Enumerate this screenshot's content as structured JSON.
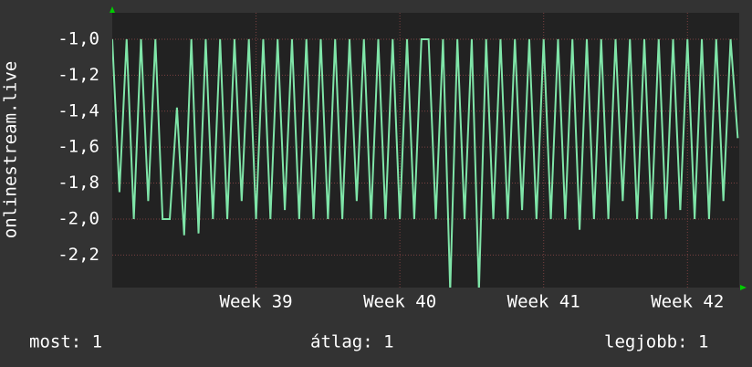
{
  "chart_data": {
    "type": "line",
    "ylabel": "onlinestream.live",
    "x": [
      38.0,
      38.05,
      38.1,
      38.15,
      38.2,
      38.25,
      38.3,
      38.35,
      38.4,
      38.45,
      38.5,
      38.55,
      38.6,
      38.65,
      38.7,
      38.75,
      38.8,
      38.85,
      38.9,
      38.95,
      39.0,
      39.05,
      39.1,
      39.15,
      39.2,
      39.25,
      39.3,
      39.35,
      39.4,
      39.45,
      39.5,
      39.55,
      39.6,
      39.65,
      39.7,
      39.75,
      39.8,
      39.85,
      39.9,
      39.95,
      40.0,
      40.05,
      40.1,
      40.15,
      40.2,
      40.25,
      40.3,
      40.35,
      40.4,
      40.45,
      40.5,
      40.55,
      40.6,
      40.65,
      40.7,
      40.75,
      40.8,
      40.85,
      40.9,
      40.95,
      41.0,
      41.05,
      41.1,
      41.15,
      41.2,
      41.25,
      41.3,
      41.35,
      41.4,
      41.45,
      41.5,
      41.55,
      41.6,
      41.65,
      41.7,
      41.75,
      41.8,
      41.85,
      41.9,
      41.95,
      42.0,
      42.05,
      42.1,
      42.15,
      42.2,
      42.25,
      42.3,
      42.35
    ],
    "series": [
      {
        "name": "onlinestream.live",
        "color": "#7fe5a8",
        "values": [
          -1,
          -1.85,
          -1,
          -2,
          -1,
          -1.9,
          -1,
          -2,
          -2,
          -1.38,
          -2.09,
          -1,
          -2.08,
          -1,
          -2,
          -1,
          -2,
          -1,
          -1.9,
          -1,
          -2,
          -1,
          -2,
          -1,
          -1.95,
          -1,
          -2,
          -1,
          -2,
          -1,
          -2,
          -1,
          -2,
          -1,
          -1.9,
          -1,
          -2,
          -1,
          -2,
          -1,
          -2,
          -1,
          -2,
          -1,
          -1,
          -2,
          -1,
          -2.4,
          -1,
          -2,
          -1,
          -2.4,
          -1,
          -2,
          -1,
          -2,
          -1,
          -1.95,
          -1,
          -2,
          -1,
          -2,
          -1,
          -2,
          -1,
          -2.06,
          -1,
          -2,
          -1,
          -2,
          -1,
          -1.9,
          -1,
          -2,
          -1,
          -2,
          -1,
          -2,
          -1,
          -1.95,
          -1,
          -2,
          -1,
          -2,
          -1,
          -1.9,
          -1,
          -1.55
        ]
      }
    ],
    "xlim": [
      38.0,
      42.36
    ],
    "xticks": [
      {
        "value": 39,
        "label": "Week 39"
      },
      {
        "value": 40,
        "label": "Week 40"
      },
      {
        "value": 41,
        "label": "Week 41"
      },
      {
        "value": 42,
        "label": "Week 42"
      }
    ],
    "ylim": [
      -2.381,
      -0.853
    ],
    "yticks": [
      {
        "value": -1.0,
        "label": "-1,0"
      },
      {
        "value": -1.2,
        "label": "-1,2"
      },
      {
        "value": -1.4,
        "label": "-1,4"
      },
      {
        "value": -1.6,
        "label": "-1,6"
      },
      {
        "value": -1.8,
        "label": "-1,8"
      },
      {
        "value": -2.0,
        "label": "-2,0"
      },
      {
        "value": -2.2,
        "label": "-2,2"
      }
    ],
    "grid": true,
    "footer": [
      "most: 1",
      "átlag: 1",
      "legjobb: 1"
    ]
  }
}
